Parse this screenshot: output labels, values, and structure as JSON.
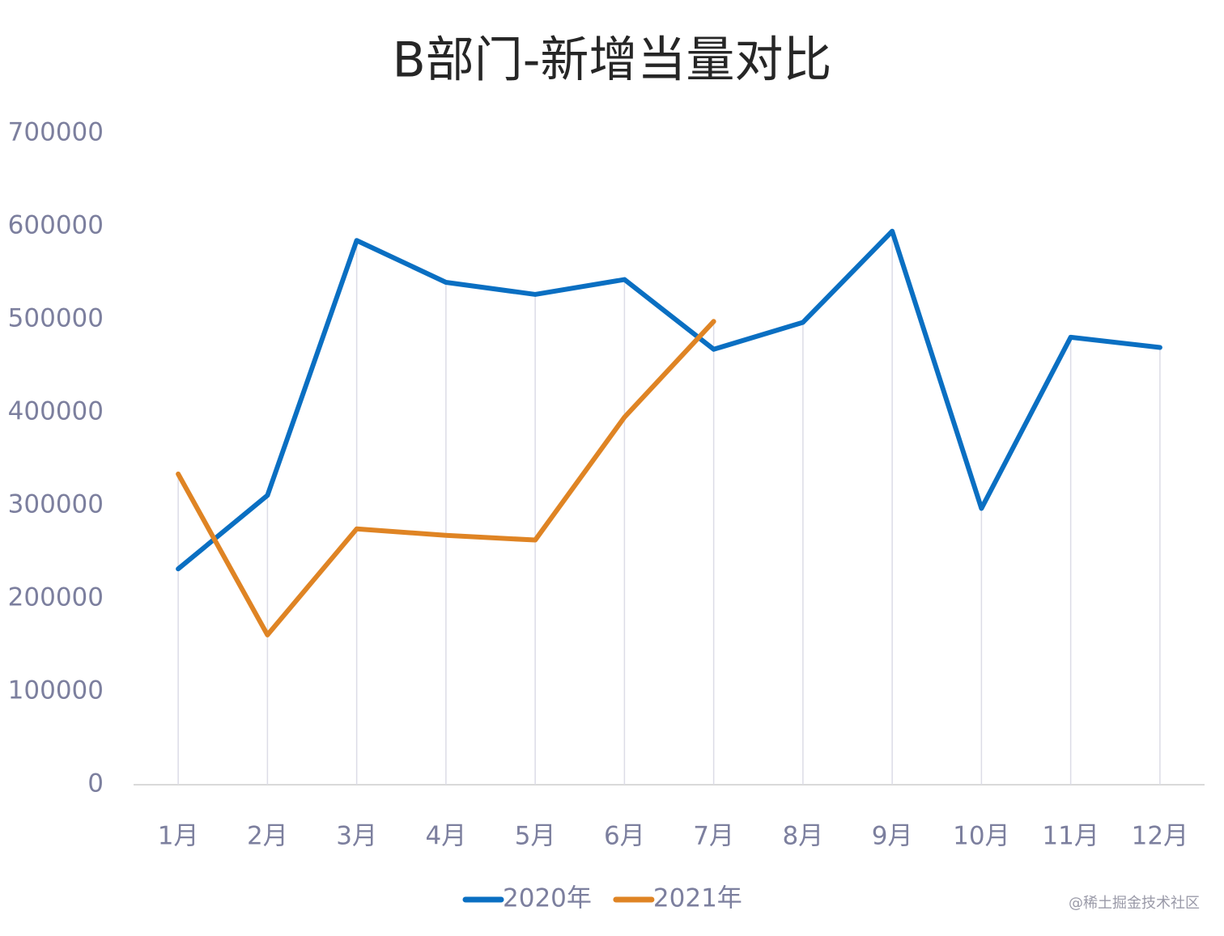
{
  "chart_data": {
    "type": "line",
    "title": "B部门-新增当量对比",
    "categories": [
      "1月",
      "2月",
      "3月",
      "4月",
      "5月",
      "6月",
      "7月",
      "8月",
      "9月",
      "10月",
      "11月",
      "12月"
    ],
    "series": [
      {
        "name": "2020年",
        "color": "#0a6fc2",
        "values": [
          232000,
          311000,
          585000,
          540000,
          527000,
          543000,
          468000,
          497000,
          595000,
          297000,
          481000,
          470000
        ]
      },
      {
        "name": "2021年",
        "color": "#df8424",
        "values": [
          334000,
          161000,
          275000,
          268000,
          263000,
          395000,
          498000,
          null,
          null,
          null,
          null,
          null
        ]
      }
    ],
    "ylim": [
      0,
      700000
    ],
    "yticks": [
      0,
      100000,
      200000,
      300000,
      400000,
      500000,
      600000,
      700000
    ],
    "drop_lines": true,
    "legend": "bottom",
    "watermark": "@稀土掘金技术社区"
  }
}
